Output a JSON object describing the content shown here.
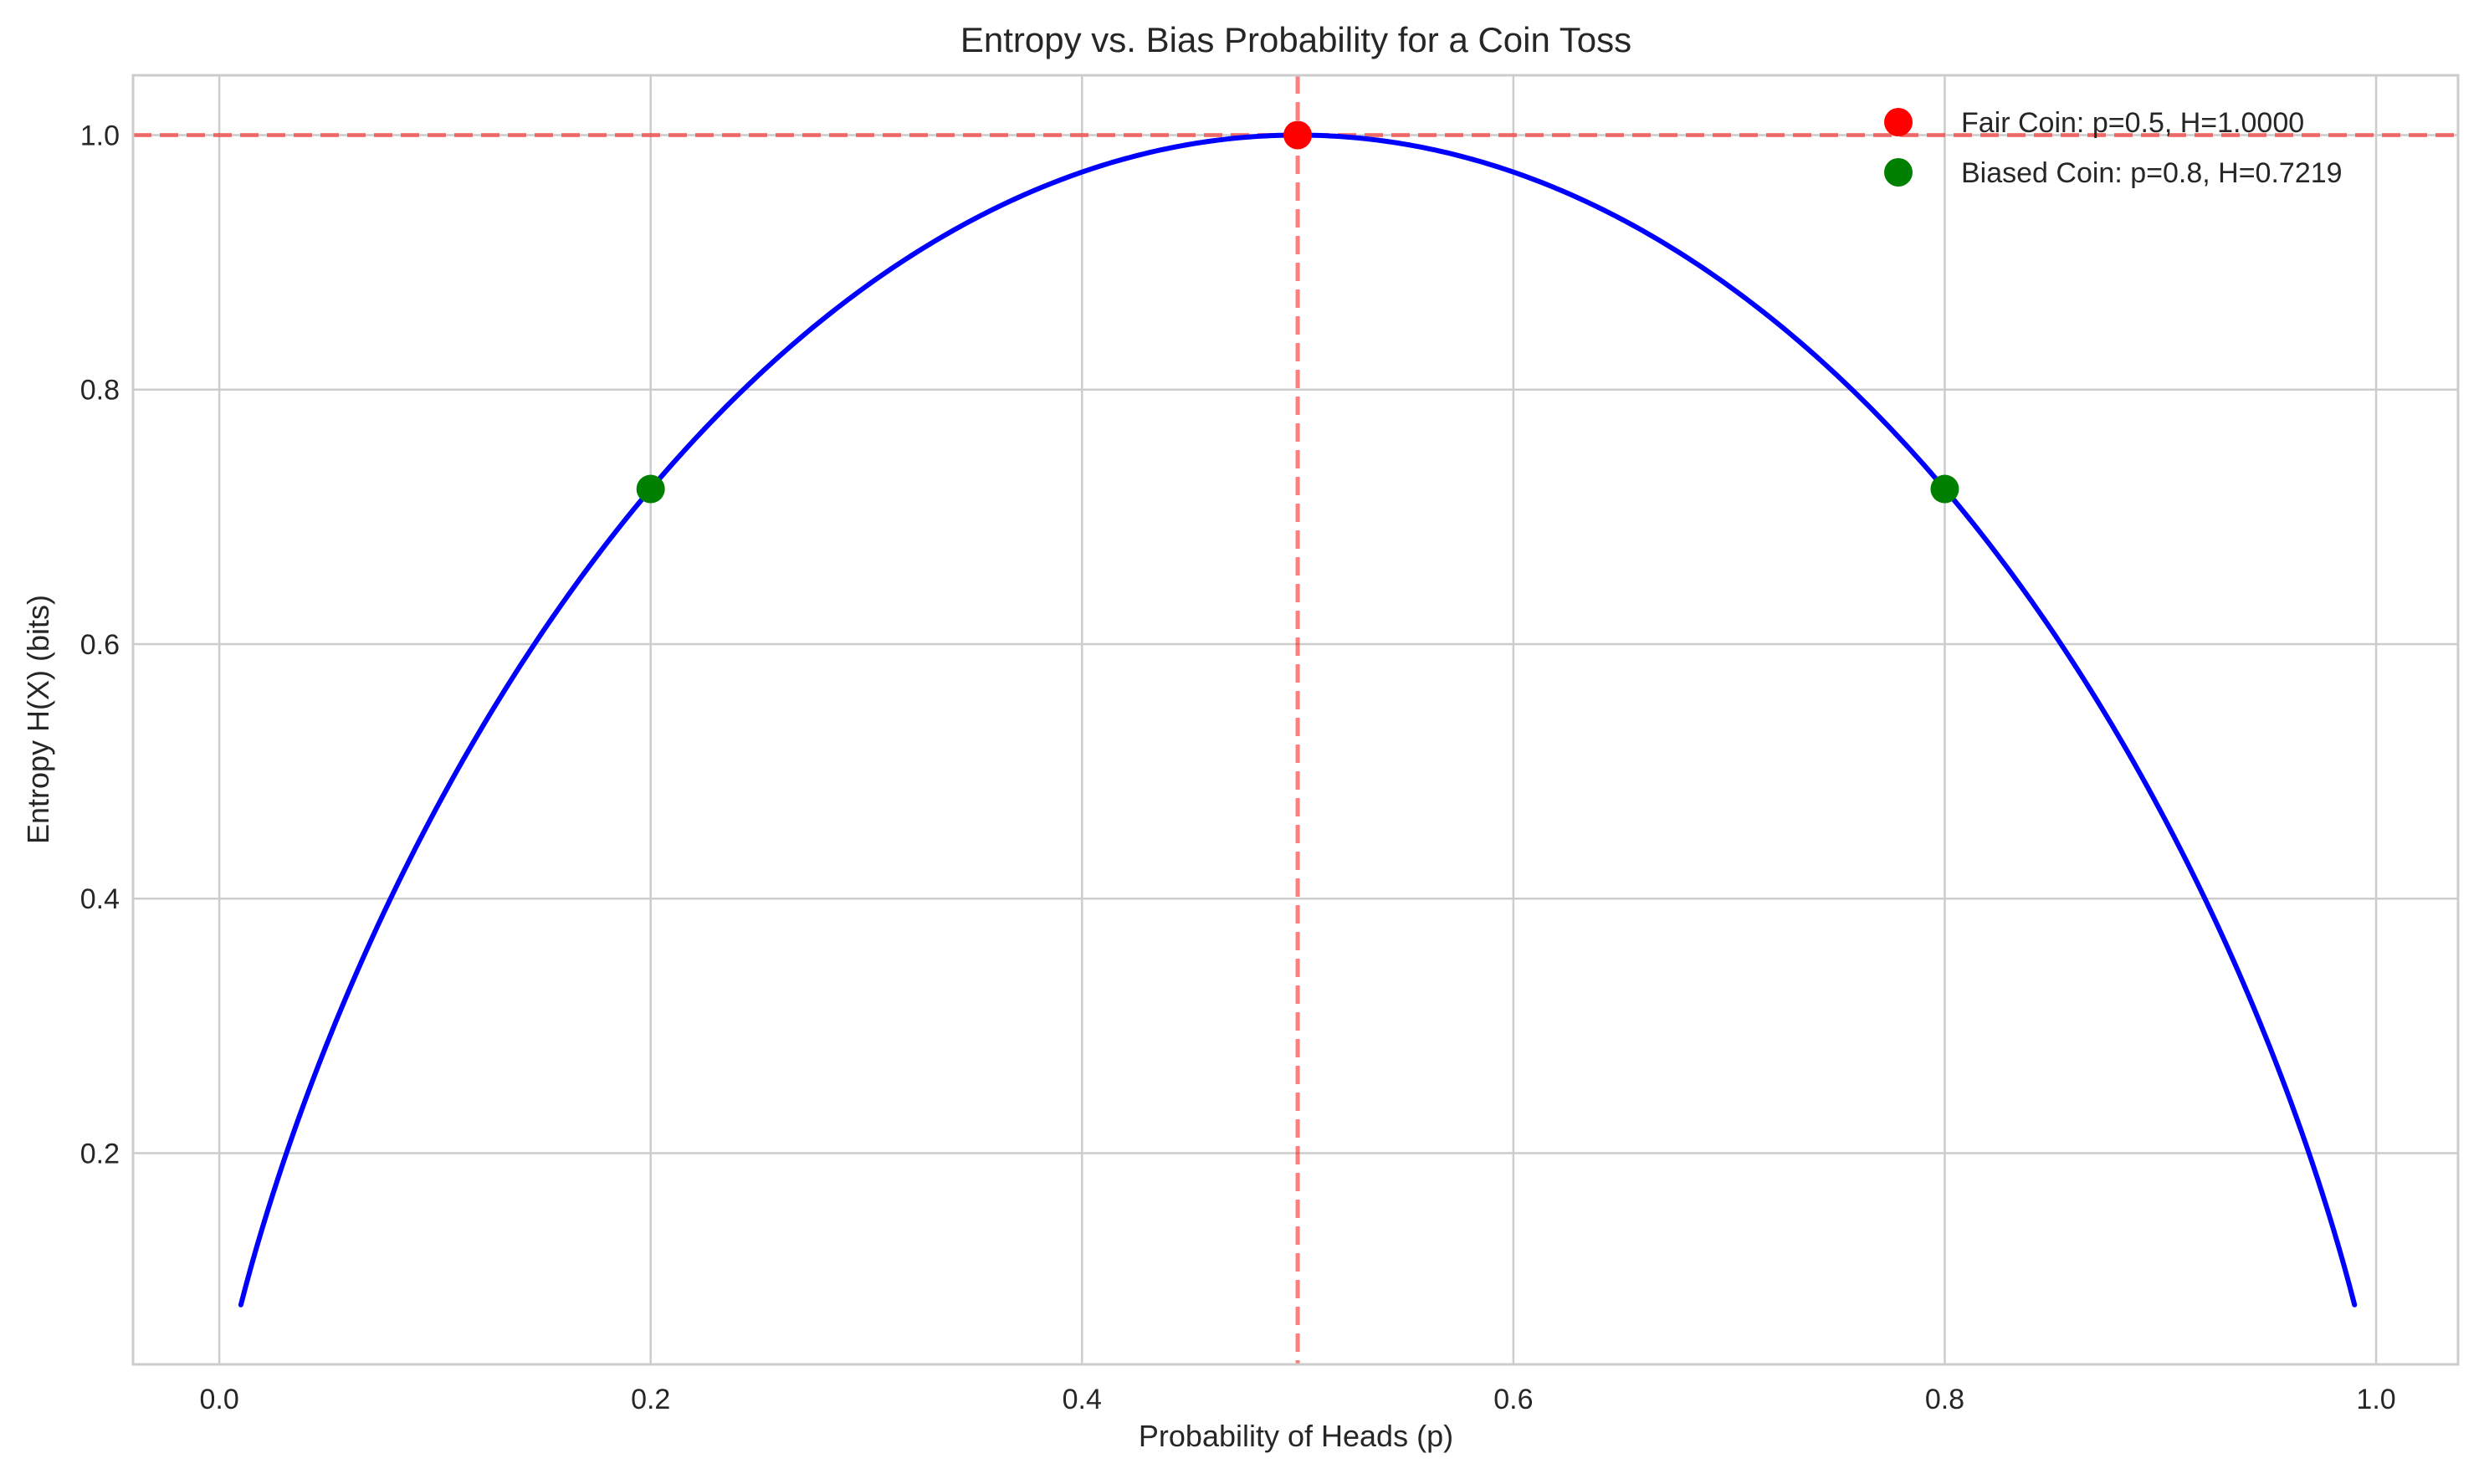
{
  "chart_data": {
    "type": "line",
    "title": "Entropy vs. Bias Probability for a Coin Toss",
    "xlabel": "Probability of Heads (p)",
    "ylabel": "Entropy H(X) (bits)",
    "xlim": [
      -0.04,
      1.038
    ],
    "ylim": [
      0.034,
      1.047
    ],
    "xticks": [
      0.0,
      0.2,
      0.4,
      0.6,
      0.8,
      1.0
    ],
    "xtick_labels": [
      "0.0",
      "0.2",
      "0.4",
      "0.6",
      "0.8",
      "1.0"
    ],
    "yticks": [
      0.2,
      0.4,
      0.6,
      0.8,
      1.0
    ],
    "ytick_labels": [
      "0.2",
      "0.4",
      "0.6",
      "0.8",
      "1.0"
    ],
    "grid": true,
    "legend_position": "top-right",
    "curve": {
      "function": "binary-entropy",
      "p_range": [
        0.01,
        0.99
      ],
      "color": "#0000ff"
    },
    "reference_lines": [
      {
        "orientation": "vertical",
        "x": 0.5,
        "style": "dashed",
        "color": "#ff0000",
        "alpha": 0.5
      },
      {
        "orientation": "horizontal",
        "y": 1.0,
        "style": "dashed",
        "color": "#ff0000",
        "alpha": 0.5
      }
    ],
    "points": [
      {
        "x": 0.5,
        "y": 1.0,
        "color": "#ff0000",
        "legend_index": 0
      },
      {
        "x": 0.2,
        "y": 0.7219,
        "color": "#008000",
        "legend_index": 1
      },
      {
        "x": 0.8,
        "y": 0.7219,
        "color": "#008000",
        "legend_index": null
      }
    ],
    "legend": [
      {
        "label": "Fair Coin: p=0.5, H=1.0000",
        "color": "#ff0000"
      },
      {
        "label": "Biased Coin: p=0.8, H=0.7219",
        "color": "#008000"
      }
    ]
  }
}
